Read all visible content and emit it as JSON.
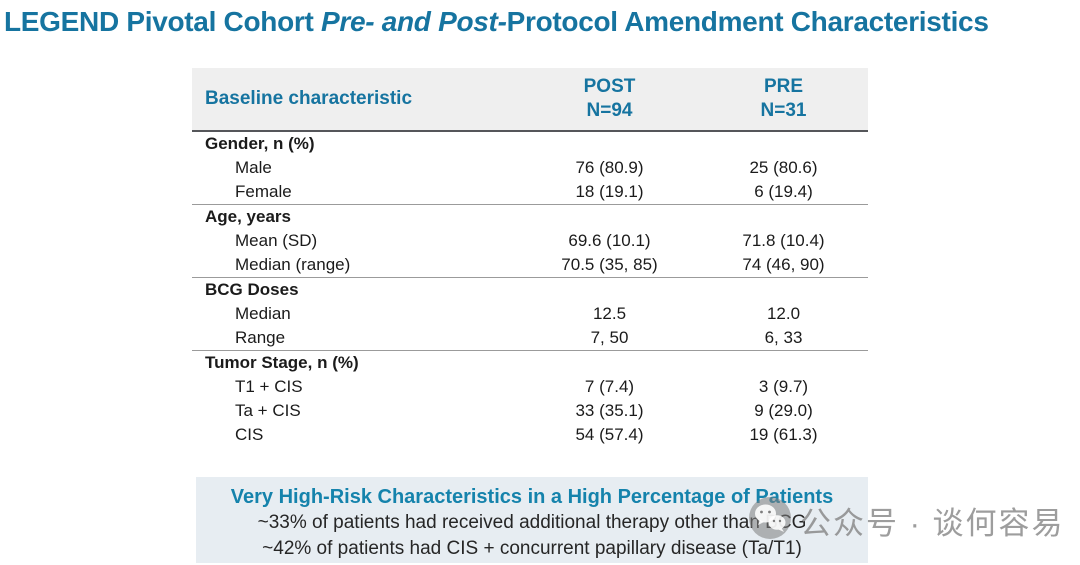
{
  "title": {
    "prefix": "LEGEND Pivotal Cohort ",
    "italic": "Pre- and Post-",
    "suffix": "Protocol Amendment Characteristics"
  },
  "table": {
    "header": {
      "characteristic": "Baseline characteristic",
      "post_line1": "POST",
      "post_line2": "N=94",
      "pre_line1": "PRE",
      "pre_line2": "N=31"
    },
    "sections": [
      {
        "label": "Gender, n (%)",
        "rows": [
          {
            "label": "Male",
            "post": "76 (80.9)",
            "pre": "25 (80.6)"
          },
          {
            "label": "Female",
            "post": "18 (19.1)",
            "pre": "6 (19.4)"
          }
        ]
      },
      {
        "label": "Age, years",
        "rows": [
          {
            "label": "Mean (SD)",
            "post": "69.6 (10.1)",
            "pre": "71.8 (10.4)"
          },
          {
            "label": "Median (range)",
            "post": "70.5 (35, 85)",
            "pre": "74 (46, 90)"
          }
        ]
      },
      {
        "label": "BCG Doses",
        "rows": [
          {
            "label": "Median",
            "post": "12.5",
            "pre": "12.0"
          },
          {
            "label": "Range",
            "post": "7, 50",
            "pre": "6, 33"
          }
        ]
      },
      {
        "label": "Tumor Stage, n (%)",
        "rows": [
          {
            "label": "T1 + CIS",
            "post": "7 (7.4)",
            "pre": "3 (9.7)"
          },
          {
            "label": "Ta + CIS",
            "post": "33 (35.1)",
            "pre": "9 (29.0)"
          },
          {
            "label": "CIS",
            "post": "54 (57.4)",
            "pre": "19 (61.3)"
          }
        ]
      }
    ]
  },
  "summary_box": {
    "heading": "Very High-Risk Characteristics in a High Percentage of Patients",
    "lines": [
      "~33% of patients had received additional therapy other than BCG",
      "~42% of patients had CIS + concurrent papillary disease (Ta/T1)"
    ]
  },
  "watermark": {
    "text": "公众号 · 谈何容易",
    "icon": "wechat-icon"
  },
  "colors": {
    "title_teal": "#1674A0",
    "box_heading_teal": "#1583AC",
    "header_bg": "#efefef",
    "box_bg": "#e7edf2",
    "body_text": "#1b1b1b",
    "divider_dark": "#55565a",
    "divider_light": "#9b9b9b",
    "watermark_gray": "#828282"
  }
}
